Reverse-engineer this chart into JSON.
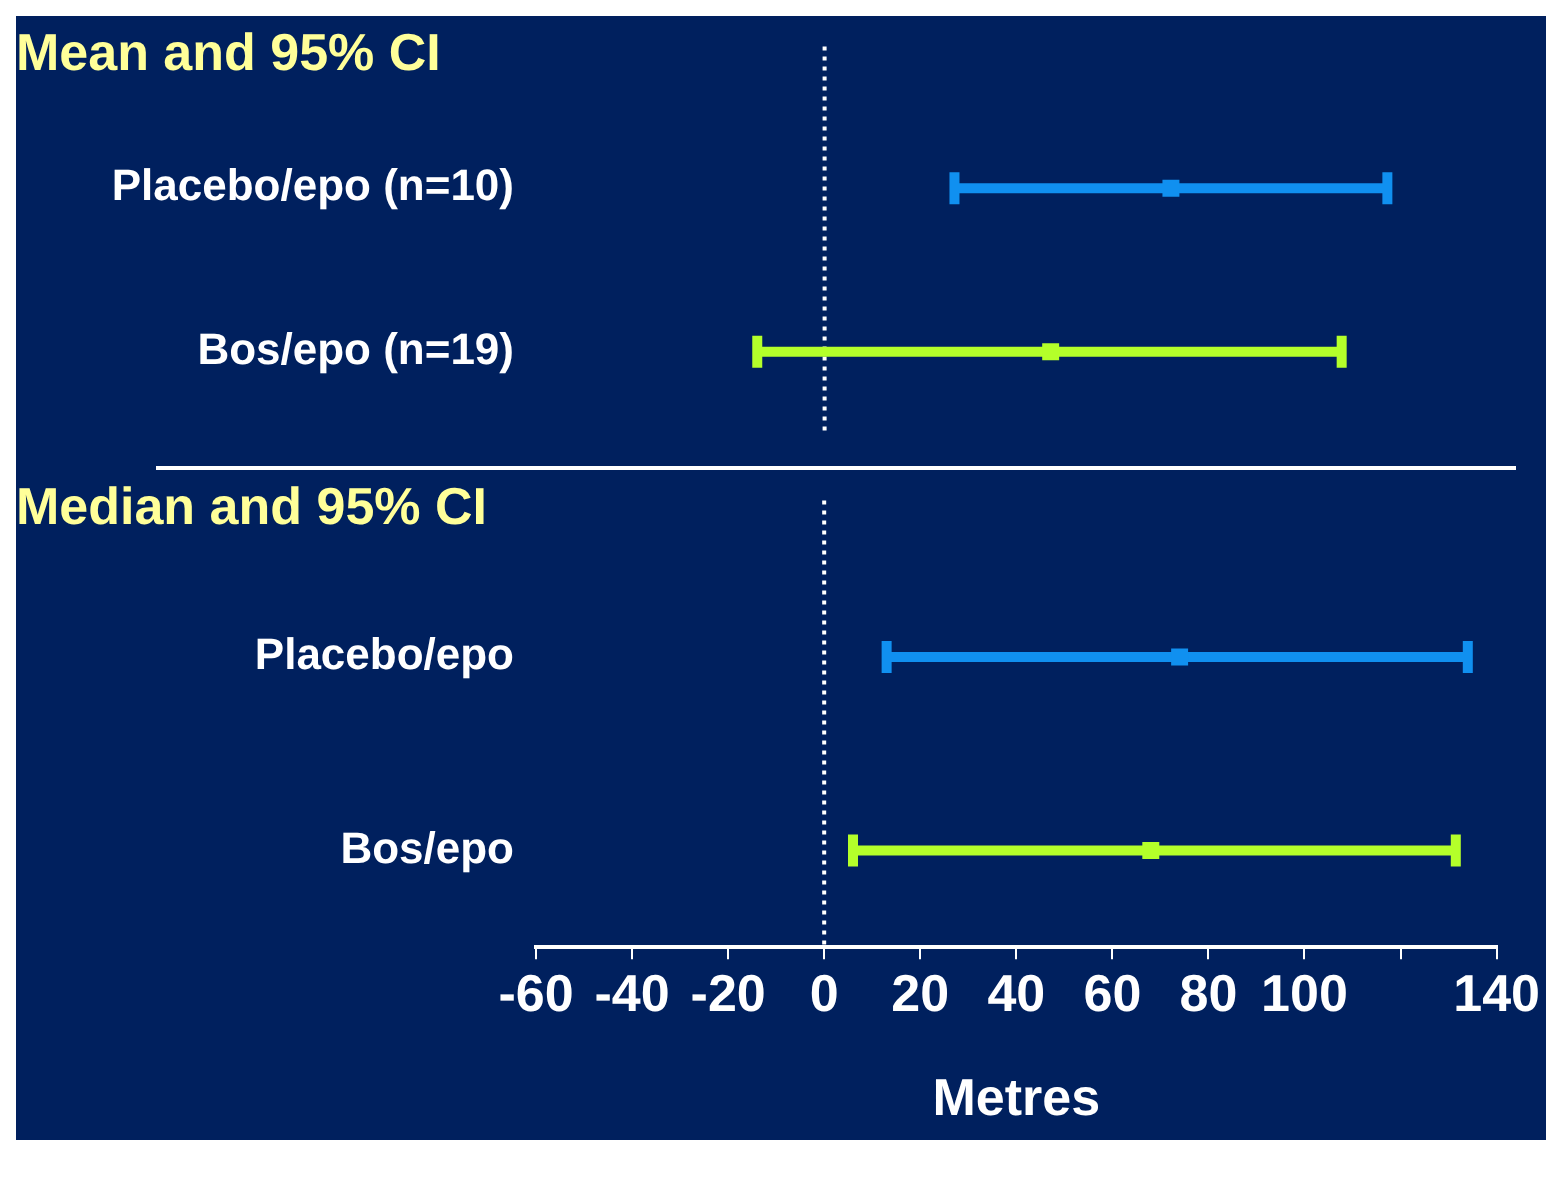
{
  "chart_data": [
    {
      "type": "scatter",
      "orientation": "horizontal",
      "title": "Mean and 95% CI",
      "categories": [
        "Placebo/epo (n=10)",
        "Bos/epo (n=19)"
      ],
      "values": [
        72,
        47
      ],
      "errors": [
        [
          27,
          117
        ],
        [
          -14,
          107.5
        ]
      ],
      "colors": [
        "#1090f0",
        "#b4ff2a"
      ],
      "xlim": [
        -60,
        140
      ],
      "ref_lines": [
        {
          "axis": "x",
          "value": 0,
          "color": "#ffffff",
          "line_style": "dotted"
        }
      ],
      "tick_labels": "y"
    },
    {
      "type": "scatter",
      "orientation": "horizontal",
      "title": "Median and 95% CI",
      "categories": [
        "Placebo/epo",
        "Bos/epo"
      ],
      "values": [
        74,
        68
      ],
      "errors": [
        [
          13,
          134
        ],
        [
          6,
          131.5
        ]
      ],
      "colors": [
        "#1090f0",
        "#b4ff2a"
      ],
      "xlim": [
        -60,
        140
      ],
      "xticks": [
        -60,
        -40,
        -20,
        0,
        20,
        40,
        60,
        80,
        100,
        {
          "value": 120,
          "label": null
        },
        140
      ],
      "xlabel": "Metres",
      "ref_lines": [
        {
          "axis": "x",
          "value": 0,
          "color": "#ffffff",
          "line_style": "dotted"
        }
      ]
    }
  ]
}
